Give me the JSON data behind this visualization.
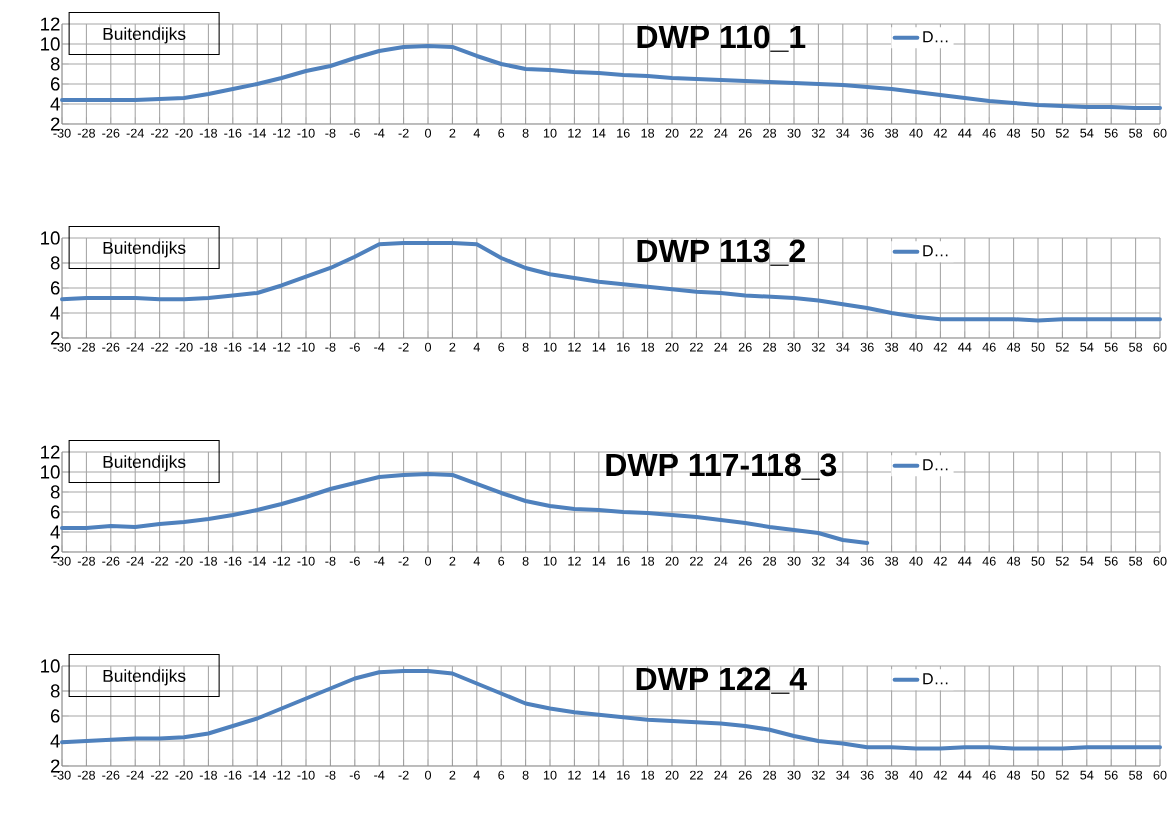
{
  "chart_data": [
    {
      "type": "line",
      "title": "DWP 110_1",
      "annotations": [
        "Buitendijks"
      ],
      "x": [
        -30,
        -28,
        -26,
        -24,
        -22,
        -20,
        -18,
        -16,
        -14,
        -12,
        -10,
        -8,
        -6,
        -4,
        -2,
        0,
        2,
        4,
        6,
        8,
        10,
        12,
        14,
        16,
        18,
        20,
        22,
        24,
        26,
        28,
        30,
        32,
        34,
        36,
        38,
        40,
        42,
        44,
        46,
        48,
        50,
        52,
        54,
        56,
        58,
        60
      ],
      "series": [
        {
          "name": "D…",
          "color": "#4f81bd",
          "values": [
            4.4,
            4.4,
            4.4,
            4.4,
            4.5,
            4.6,
            5.0,
            5.5,
            6.0,
            6.6,
            7.3,
            7.8,
            8.6,
            9.3,
            9.7,
            9.8,
            9.7,
            8.8,
            8.0,
            7.5,
            7.4,
            7.2,
            7.1,
            6.9,
            6.8,
            6.6,
            6.5,
            6.4,
            6.3,
            6.2,
            6.1,
            6.0,
            5.9,
            5.7,
            5.5,
            5.2,
            4.9,
            4.6,
            4.3,
            4.1,
            3.9,
            3.8,
            3.7,
            3.7,
            3.6,
            3.6
          ]
        }
      ],
      "xlim": [
        -30,
        60
      ],
      "xticks": [
        -30,
        -28,
        -26,
        -24,
        -22,
        -20,
        -18,
        -16,
        -14,
        -12,
        -10,
        -8,
        -6,
        -4,
        -2,
        0,
        2,
        4,
        6,
        8,
        10,
        12,
        14,
        16,
        18,
        20,
        22,
        24,
        26,
        28,
        30,
        32,
        34,
        36,
        38,
        40,
        42,
        44,
        46,
        48,
        50,
        52,
        54,
        56,
        58,
        60
      ],
      "ylim": [
        2,
        12
      ],
      "yticks": [
        2,
        4,
        6,
        8,
        10,
        12
      ],
      "grid": true,
      "legend": "top right",
      "marker": "none",
      "line_style": "solid"
    },
    {
      "type": "line",
      "title": "DWP 113_2",
      "annotations": [
        "Buitendijks"
      ],
      "x": [
        -30,
        -28,
        -26,
        -24,
        -22,
        -20,
        -18,
        -16,
        -14,
        -12,
        -10,
        -8,
        -6,
        -4,
        -2,
        0,
        2,
        4,
        6,
        8,
        10,
        12,
        14,
        16,
        18,
        20,
        22,
        24,
        26,
        28,
        30,
        32,
        34,
        36,
        38,
        40,
        42,
        44,
        46,
        48,
        50,
        52,
        54,
        56,
        58,
        60
      ],
      "series": [
        {
          "name": "D…",
          "color": "#4f81bd",
          "values": [
            5.1,
            5.2,
            5.2,
            5.2,
            5.1,
            5.1,
            5.2,
            5.4,
            5.6,
            6.2,
            6.9,
            7.6,
            8.5,
            9.5,
            9.6,
            9.6,
            9.6,
            9.5,
            8.4,
            7.6,
            7.1,
            6.8,
            6.5,
            6.3,
            6.1,
            5.9,
            5.7,
            5.6,
            5.4,
            5.3,
            5.2,
            5.0,
            4.7,
            4.4,
            4.0,
            3.7,
            3.5,
            3.5,
            3.5,
            3.5,
            3.4,
            3.5,
            3.5,
            3.5,
            3.5,
            3.5
          ]
        }
      ],
      "xlim": [
        -30,
        60
      ],
      "xticks": [
        -30,
        -28,
        -26,
        -24,
        -22,
        -20,
        -18,
        -16,
        -14,
        -12,
        -10,
        -8,
        -6,
        -4,
        -2,
        0,
        2,
        4,
        6,
        8,
        10,
        12,
        14,
        16,
        18,
        20,
        22,
        24,
        26,
        28,
        30,
        32,
        34,
        36,
        38,
        40,
        42,
        44,
        46,
        48,
        50,
        52,
        54,
        56,
        58,
        60
      ],
      "ylim": [
        2,
        10
      ],
      "yticks": [
        2,
        4,
        6,
        8,
        10
      ],
      "grid": true,
      "legend": "top right",
      "marker": "none",
      "line_style": "solid"
    },
    {
      "type": "line",
      "title": "DWP 117-118_3",
      "annotations": [
        "Buitendijks"
      ],
      "x": [
        -30,
        -28,
        -26,
        -24,
        -22,
        -20,
        -18,
        -16,
        -14,
        -12,
        -10,
        -8,
        -6,
        -4,
        -2,
        0,
        2,
        4,
        6,
        8,
        10,
        12,
        14,
        16,
        18,
        20,
        22,
        24,
        26,
        28,
        30,
        32,
        34,
        36
      ],
      "series": [
        {
          "name": "D…",
          "color": "#4f81bd",
          "values": [
            4.4,
            4.4,
            4.6,
            4.5,
            4.8,
            5.0,
            5.3,
            5.7,
            6.2,
            6.8,
            7.5,
            8.3,
            8.9,
            9.5,
            9.7,
            9.8,
            9.7,
            8.8,
            7.9,
            7.1,
            6.6,
            6.3,
            6.2,
            6.0,
            5.9,
            5.7,
            5.5,
            5.2,
            4.9,
            4.5,
            4.2,
            3.9,
            3.2,
            2.9
          ]
        }
      ],
      "xlim": [
        -30,
        60
      ],
      "xticks": [
        -30,
        -28,
        -26,
        -24,
        -22,
        -20,
        -18,
        -16,
        -14,
        -12,
        -10,
        -8,
        -6,
        -4,
        -2,
        0,
        2,
        4,
        6,
        8,
        10,
        12,
        14,
        16,
        18,
        20,
        22,
        24,
        26,
        28,
        30,
        32,
        34,
        36,
        38,
        40,
        42,
        44,
        46,
        48,
        50,
        52,
        54,
        56,
        58,
        60
      ],
      "ylim": [
        2,
        12
      ],
      "yticks": [
        2,
        4,
        6,
        8,
        10,
        12
      ],
      "grid": true,
      "legend": "top right",
      "marker": "none",
      "line_style": "solid"
    },
    {
      "type": "line",
      "title": "DWP 122_4",
      "annotations": [
        "Buitendijks"
      ],
      "x": [
        -30,
        -28,
        -26,
        -24,
        -22,
        -20,
        -18,
        -16,
        -14,
        -12,
        -10,
        -8,
        -6,
        -4,
        -2,
        0,
        2,
        4,
        6,
        8,
        10,
        12,
        14,
        16,
        18,
        20,
        22,
        24,
        26,
        28,
        30,
        32,
        34,
        36,
        38,
        40,
        42,
        44,
        46,
        48,
        50,
        52,
        54,
        56,
        58,
        60
      ],
      "series": [
        {
          "name": "D…",
          "color": "#4f81bd",
          "values": [
            3.9,
            4.0,
            4.1,
            4.2,
            4.2,
            4.3,
            4.6,
            5.2,
            5.8,
            6.6,
            7.4,
            8.2,
            9.0,
            9.5,
            9.6,
            9.6,
            9.4,
            8.6,
            7.8,
            7.0,
            6.6,
            6.3,
            6.1,
            5.9,
            5.7,
            5.6,
            5.5,
            5.4,
            5.2,
            4.9,
            4.4,
            4.0,
            3.8,
            3.5,
            3.5,
            3.4,
            3.4,
            3.5,
            3.5,
            3.4,
            3.4,
            3.4,
            3.5,
            3.5,
            3.5,
            3.5
          ]
        }
      ],
      "xlim": [
        -30,
        60
      ],
      "xticks": [
        -30,
        -28,
        -26,
        -24,
        -22,
        -20,
        -18,
        -16,
        -14,
        -12,
        -10,
        -8,
        -6,
        -4,
        -2,
        0,
        2,
        4,
        6,
        8,
        10,
        12,
        14,
        16,
        18,
        20,
        22,
        24,
        26,
        28,
        30,
        32,
        34,
        36,
        38,
        40,
        42,
        44,
        46,
        48,
        50,
        52,
        54,
        56,
        58,
        60
      ],
      "ylim": [
        2,
        10
      ],
      "yticks": [
        2,
        4,
        6,
        8,
        10
      ],
      "grid": true,
      "legend": "top right",
      "marker": "none",
      "line_style": "solid"
    }
  ]
}
